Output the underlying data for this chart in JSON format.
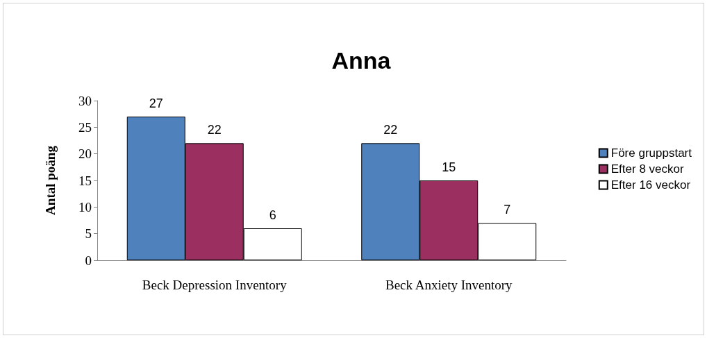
{
  "chart_data": {
    "type": "bar",
    "title": "Anna",
    "ylabel": "Antal poäng",
    "categories": [
      "Beck Depression Inventory",
      "Beck Anxiety Inventory"
    ],
    "series": [
      {
        "name": "Före gruppstart",
        "color": "#4f81bd",
        "values": [
          27,
          22
        ]
      },
      {
        "name": "Efter 8 veckor",
        "color": "#9b3060",
        "values": [
          22,
          15
        ]
      },
      {
        "name": "Efter 16 veckor",
        "color": "#ffffff",
        "values": [
          6,
          7
        ]
      }
    ],
    "ylim": [
      0,
      30
    ],
    "yticks": [
      0,
      5,
      10,
      15,
      20,
      25,
      30
    ],
    "grid": false,
    "legend": "right",
    "data_labels": true
  }
}
